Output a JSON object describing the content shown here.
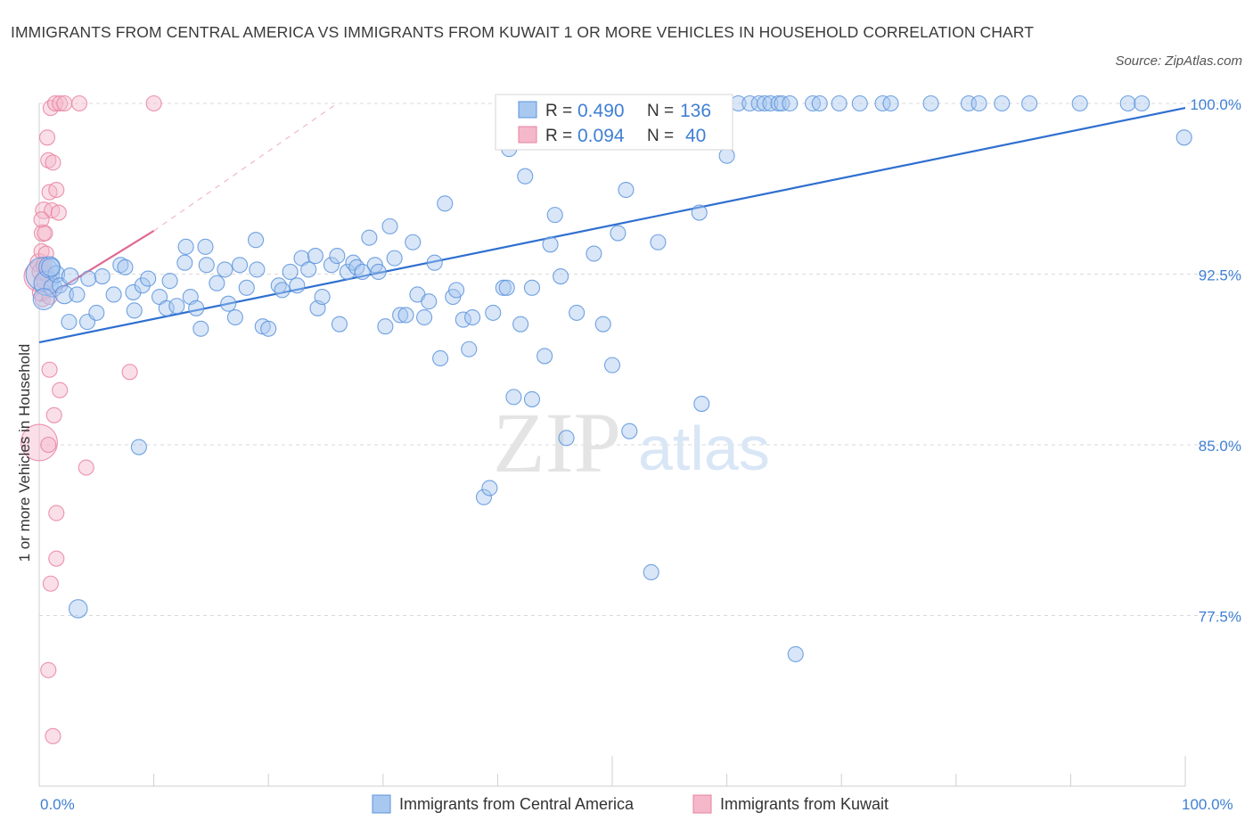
{
  "title": "IMMIGRANTS FROM CENTRAL AMERICA VS IMMIGRANTS FROM KUWAIT 1 OR MORE VEHICLES IN HOUSEHOLD CORRELATION CHART",
  "source": "Source: ZipAtlas.com",
  "watermark": {
    "zip": "ZIP",
    "atlas": "atlas"
  },
  "stats": {
    "r_label": "R =",
    "n_label": "N =",
    "central_america": {
      "r": "0.490",
      "n": "136"
    },
    "kuwait": {
      "r": "0.094",
      "n": "40"
    }
  },
  "colors": {
    "blue_fill": "#a9c8f0",
    "blue_stroke": "#5b93dc",
    "blue_line": "#2f6fd0",
    "pink_fill": "#f5b8cb",
    "pink_stroke": "#e8819f",
    "pink_line": "#e06a92",
    "grid": "#d8d8d8",
    "tick_text": "#3f7fd4"
  },
  "chart_data": {
    "type": "scatter",
    "xlabel": "",
    "ylabel": "1 or more Vehicles in Household",
    "x_tick_labels": [
      "0.0%",
      "100.0%"
    ],
    "y_tick_labels": [
      "77.5%",
      "85.0%",
      "92.5%",
      "100.0%"
    ],
    "y_ticks": [
      77.5,
      85.0,
      92.5,
      100.0
    ],
    "xlim": [
      0,
      100
    ],
    "ylim": [
      70.0,
      100.0
    ],
    "grid": true,
    "legend_position": "bottom-center",
    "series": [
      {
        "name": "Immigrants from Central America",
        "color": "#a9c8f0",
        "trend": {
          "x": [
            0,
            100
          ],
          "y": [
            89.5,
            99.8
          ],
          "style": "solid"
        },
        "points": [
          [
            0.3,
            92.5,
            2.2
          ],
          [
            0.6,
            92.1,
            1.6
          ],
          [
            0.9,
            92.8,
            1.4
          ],
          [
            1.2,
            91.9,
            1.2
          ],
          [
            1.5,
            92.5,
            1.1
          ],
          [
            1.8,
            92.0,
            1.0
          ],
          [
            2.2,
            91.6,
            1.2
          ],
          [
            2.6,
            90.4,
            1.0
          ],
          [
            3.3,
            91.6,
            1.0
          ],
          [
            4.2,
            90.4,
            1.0
          ],
          [
            4.3,
            92.3,
            1.0
          ],
          [
            5.5,
            92.4,
            1.0
          ],
          [
            6.5,
            91.6,
            1.0
          ],
          [
            7.1,
            92.9,
            1.0
          ],
          [
            7.5,
            92.8,
            1.0
          ],
          [
            8.2,
            91.7,
            1.0
          ],
          [
            8.3,
            90.9,
            1.0
          ],
          [
            9.0,
            92.0,
            1.0
          ],
          [
            9.5,
            92.3,
            1.0
          ],
          [
            10.5,
            91.5,
            1.0
          ],
          [
            11.1,
            91.0,
            1.0
          ],
          [
            11.4,
            92.2,
            1.0
          ],
          [
            12.0,
            91.1,
            1.0
          ],
          [
            12.7,
            93.0,
            1.0
          ],
          [
            12.8,
            93.7,
            1.0
          ],
          [
            13.2,
            91.5,
            1.0
          ],
          [
            13.7,
            91.0,
            1.0
          ],
          [
            14.1,
            90.1,
            1.0
          ],
          [
            14.5,
            93.7,
            1.0
          ],
          [
            14.6,
            92.9,
            1.0
          ],
          [
            15.5,
            92.1,
            1.0
          ],
          [
            16.2,
            92.7,
            1.0
          ],
          [
            16.5,
            91.2,
            1.0
          ],
          [
            17.1,
            90.6,
            1.0
          ],
          [
            17.5,
            92.9,
            1.0
          ],
          [
            18.1,
            91.9,
            1.0
          ],
          [
            18.9,
            94.0,
            1.0
          ],
          [
            19.0,
            92.7,
            1.0
          ],
          [
            19.5,
            90.2,
            1.0
          ],
          [
            20.0,
            90.1,
            1.0
          ],
          [
            20.9,
            92.0,
            1.0
          ],
          [
            21.2,
            91.8,
            1.0
          ],
          [
            21.9,
            92.6,
            1.0
          ],
          [
            22.5,
            92.0,
            1.0
          ],
          [
            22.9,
            93.2,
            1.0
          ],
          [
            23.5,
            92.7,
            1.0
          ],
          [
            24.1,
            93.3,
            1.0
          ],
          [
            24.3,
            91.0,
            1.0
          ],
          [
            24.7,
            91.5,
            1.0
          ],
          [
            25.5,
            92.9,
            1.0
          ],
          [
            26.0,
            93.3,
            1.0
          ],
          [
            26.2,
            90.3,
            1.0
          ],
          [
            26.9,
            92.6,
            1.0
          ],
          [
            27.4,
            93.0,
            1.0
          ],
          [
            27.7,
            92.8,
            1.0
          ],
          [
            28.2,
            92.6,
            1.0
          ],
          [
            28.8,
            94.1,
            1.0
          ],
          [
            29.3,
            92.9,
            1.0
          ],
          [
            29.6,
            92.6,
            1.0
          ],
          [
            30.2,
            90.2,
            1.0
          ],
          [
            30.6,
            94.6,
            1.0
          ],
          [
            31.0,
            93.2,
            1.0
          ],
          [
            31.5,
            90.7,
            1.0
          ],
          [
            32.0,
            90.7,
            1.0
          ],
          [
            32.6,
            93.9,
            1.0
          ],
          [
            33.0,
            91.6,
            1.0
          ],
          [
            33.6,
            90.6,
            1.0
          ],
          [
            34.0,
            91.3,
            1.0
          ],
          [
            34.5,
            93.0,
            1.0
          ],
          [
            35.0,
            88.8,
            1.0
          ],
          [
            35.4,
            95.6,
            1.0
          ],
          [
            36.1,
            91.5,
            1.0
          ],
          [
            36.4,
            91.8,
            1.0
          ],
          [
            37.0,
            90.5,
            1.0
          ],
          [
            37.5,
            89.2,
            1.0
          ],
          [
            37.8,
            90.6,
            1.0
          ],
          [
            38.8,
            82.7,
            1.0
          ],
          [
            39.3,
            83.1,
            1.0
          ],
          [
            39.6,
            90.8,
            1.0
          ],
          [
            40.5,
            91.9,
            1.0
          ],
          [
            40.8,
            91.9,
            1.0
          ],
          [
            41.0,
            98.0,
            1.0
          ],
          [
            41.4,
            87.1,
            1.0
          ],
          [
            42.0,
            90.3,
            1.0
          ],
          [
            42.4,
            96.8,
            1.0
          ],
          [
            43.0,
            87.0,
            1.0
          ],
          [
            43.0,
            91.9,
            1.0
          ],
          [
            44.1,
            88.9,
            1.0
          ],
          [
            44.6,
            93.8,
            1.0
          ],
          [
            45.0,
            95.1,
            1.0
          ],
          [
            45.5,
            92.4,
            1.0
          ],
          [
            46.0,
            85.3,
            1.0
          ],
          [
            46.9,
            90.8,
            1.0
          ],
          [
            47.3,
            100.0,
            1.0
          ],
          [
            48.4,
            93.4,
            1.0
          ],
          [
            48.8,
            98.7,
            1.0
          ],
          [
            49.2,
            90.3,
            1.0
          ],
          [
            50.0,
            88.5,
            1.0
          ],
          [
            50.5,
            94.3,
            1.0
          ],
          [
            51.2,
            96.2,
            1.0
          ],
          [
            51.5,
            85.6,
            1.0
          ],
          [
            52.0,
            98.5,
            1.0
          ],
          [
            52.3,
            100.0,
            1.0
          ],
          [
            53.4,
            79.4,
            1.0
          ],
          [
            53.7,
            100.0,
            1.0
          ],
          [
            54.0,
            93.9,
            1.0
          ],
          [
            55.8,
            100.0,
            1.0
          ],
          [
            57.6,
            95.2,
            1.0
          ],
          [
            57.8,
            86.8,
            1.0
          ],
          [
            59.6,
            100.0,
            1.0
          ],
          [
            60.0,
            97.7,
            1.0
          ],
          [
            61.0,
            100.0,
            1.0
          ],
          [
            62.0,
            100.0,
            1.0
          ],
          [
            62.8,
            100.0,
            1.0
          ],
          [
            63.3,
            100.0,
            1.0
          ],
          [
            63.8,
            100.0,
            1.0
          ],
          [
            64.5,
            100.0,
            1.0
          ],
          [
            64.8,
            100.0,
            1.0
          ],
          [
            65.5,
            100.0,
            1.0
          ],
          [
            66.0,
            75.8,
            1.0
          ],
          [
            67.5,
            100.0,
            1.0
          ],
          [
            68.1,
            100.0,
            1.0
          ],
          [
            69.8,
            100.0,
            1.0
          ],
          [
            71.6,
            100.0,
            1.0
          ],
          [
            73.6,
            100.0,
            1.0
          ],
          [
            74.3,
            100.0,
            1.0
          ],
          [
            77.8,
            100.0,
            1.0
          ],
          [
            81.1,
            100.0,
            1.0
          ],
          [
            82.0,
            100.0,
            1.0
          ],
          [
            84.0,
            100.0,
            1.0
          ],
          [
            86.4,
            100.0,
            1.0
          ],
          [
            90.8,
            100.0,
            1.0
          ],
          [
            95.0,
            100.0,
            1.0
          ],
          [
            96.2,
            100.0,
            1.0
          ],
          [
            99.9,
            98.5,
            1.0
          ],
          [
            3.4,
            77.8,
            1.2
          ],
          [
            8.7,
            84.9,
            1.0
          ],
          [
            0.4,
            91.4,
            1.4
          ],
          [
            1.0,
            92.8,
            1.2
          ],
          [
            2.7,
            92.4,
            1.1
          ],
          [
            5.0,
            90.8,
            1.0
          ]
        ]
      },
      {
        "name": "Immigrants from Kuwait",
        "color": "#f5b8cb",
        "trend": {
          "x": [
            0,
            10
          ],
          "y": [
            91.3,
            94.4
          ],
          "style": "solid",
          "extended_dashed_to": [
            26,
            100.0
          ]
        },
        "points": [
          [
            0.0,
            92.4,
            2.0
          ],
          [
            0.0,
            85.1,
            2.4
          ],
          [
            0.0,
            93.0,
            1.2
          ],
          [
            0.1,
            92.6,
            1.1
          ],
          [
            0.2,
            91.7,
            1.2
          ],
          [
            0.3,
            94.3,
            1.1
          ],
          [
            0.4,
            95.3,
            1.1
          ],
          [
            0.5,
            92.2,
            1.1
          ],
          [
            0.6,
            92.5,
            1.0
          ],
          [
            0.7,
            98.5,
            1.0
          ],
          [
            0.8,
            97.5,
            1.0
          ],
          [
            0.8,
            85.0,
            1.0
          ],
          [
            0.9,
            96.1,
            1.0
          ],
          [
            0.9,
            88.3,
            1.0
          ],
          [
            1.0,
            99.8,
            1.0
          ],
          [
            1.1,
            95.3,
            1.0
          ],
          [
            1.2,
            97.4,
            1.0
          ],
          [
            1.3,
            86.3,
            1.0
          ],
          [
            1.4,
            100.0,
            1.0
          ],
          [
            1.5,
            82.0,
            1.0
          ],
          [
            1.5,
            80.0,
            1.0
          ],
          [
            1.5,
            96.2,
            1.0
          ],
          [
            1.7,
            95.2,
            1.0
          ],
          [
            1.8,
            100.0,
            1.0
          ],
          [
            1.8,
            87.4,
            1.0
          ],
          [
            1.0,
            78.9,
            1.0
          ],
          [
            0.8,
            75.1,
            1.0
          ],
          [
            1.2,
            72.2,
            1.0
          ],
          [
            2.2,
            100.0,
            1.0
          ],
          [
            4.1,
            84.0,
            1.0
          ],
          [
            3.5,
            100.0,
            1.0
          ],
          [
            7.9,
            88.2,
            1.0
          ],
          [
            10.0,
            100.0,
            1.0
          ],
          [
            0.2,
            93.5,
            1.0
          ],
          [
            0.5,
            94.3,
            1.0
          ],
          [
            0.3,
            91.4,
            1.0
          ],
          [
            0.6,
            93.4,
            1.0
          ],
          [
            0.4,
            92.9,
            1.0
          ],
          [
            0.9,
            91.5,
            1.0
          ],
          [
            0.2,
            94.9,
            1.0
          ]
        ]
      }
    ]
  }
}
